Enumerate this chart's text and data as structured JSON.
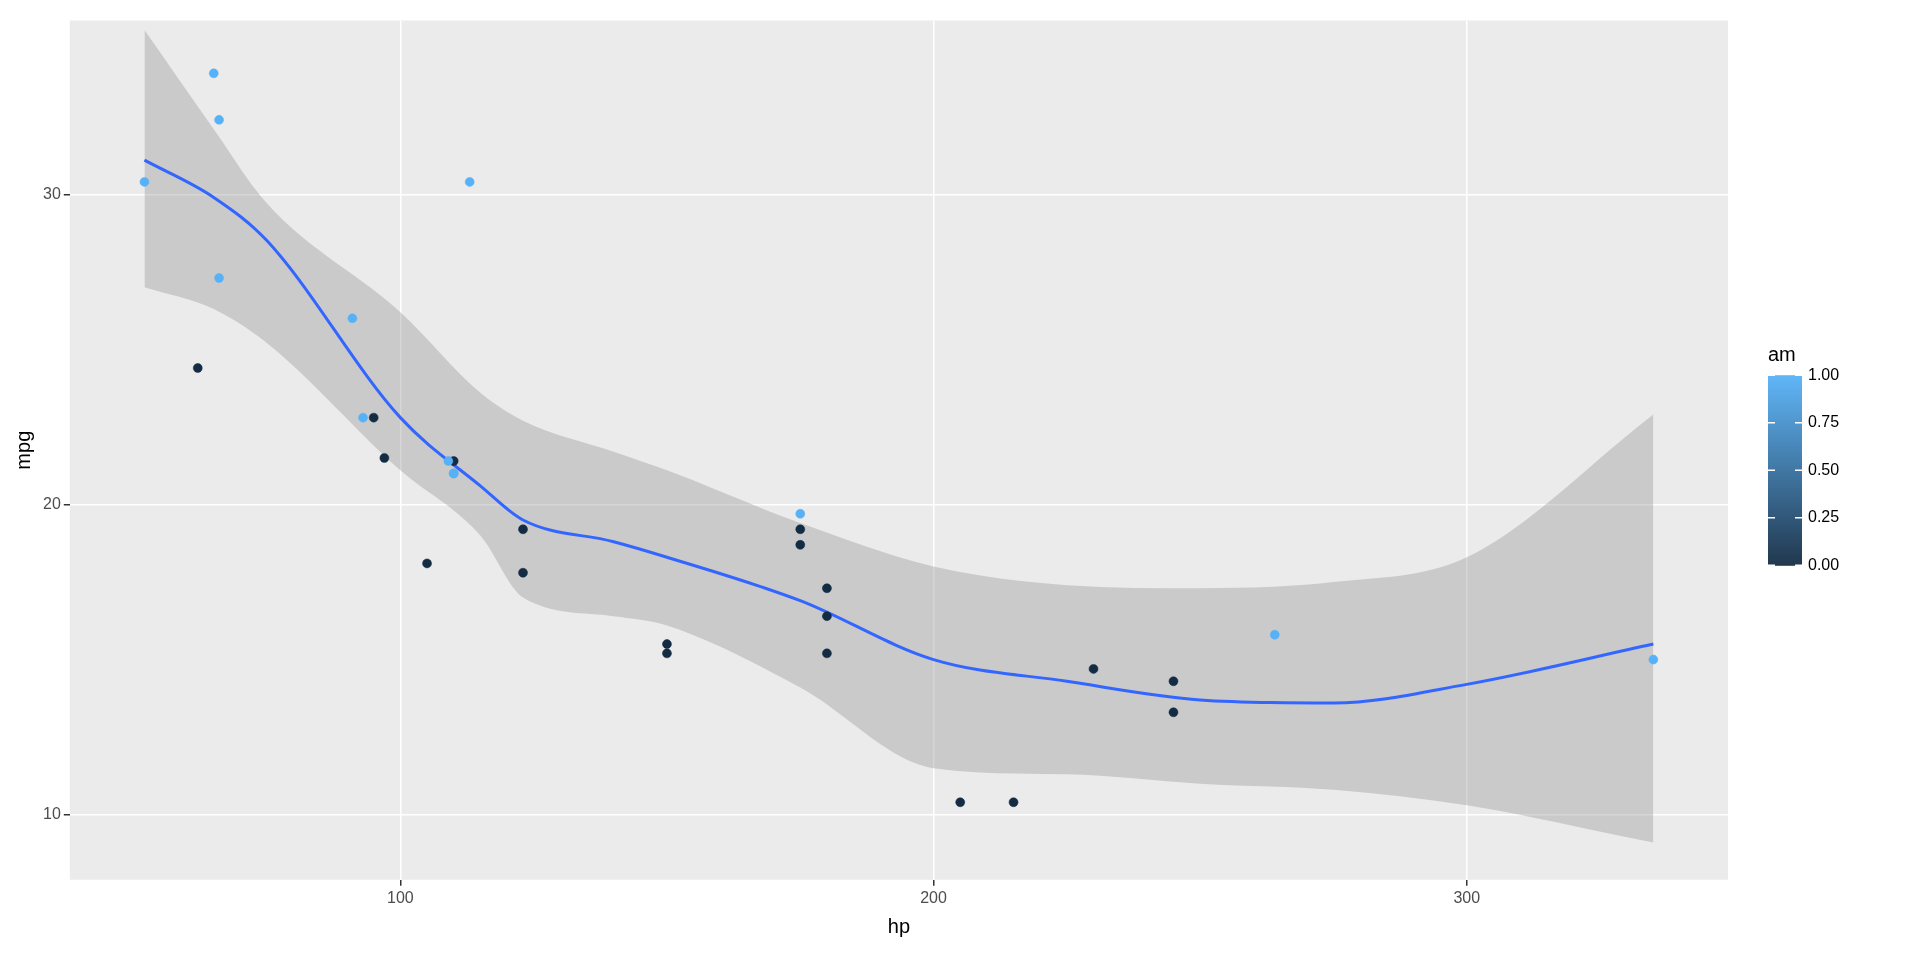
{
  "chart_data": {
    "type": "scatter",
    "xlabel": "hp",
    "ylabel": "mpg",
    "clabel": "am",
    "xlim": [
      38,
      349
    ],
    "xticks": [
      100,
      200,
      300
    ],
    "ylim": [
      7.9,
      35.6
    ],
    "yticks": [
      10,
      20,
      30
    ],
    "clim": [
      0,
      1
    ],
    "cticks": [
      {
        "value": 0,
        "label": "0.00"
      },
      {
        "value": 0.25,
        "label": "0.25"
      },
      {
        "value": 0.5,
        "label": "0.50"
      },
      {
        "value": 0.75,
        "label": "0.75"
      },
      {
        "value": 1,
        "label": "1.00"
      }
    ],
    "grid": true,
    "series": [
      {
        "marker": "circle",
        "colors": [
          "#56b1f7",
          "#56b1f7",
          "#56b1f7",
          "#132b43",
          "#132b43",
          "#132b43",
          "#132b43",
          "#132b43",
          "#132b43",
          "#132b43",
          "#132b43",
          "#132b43",
          "#132b43",
          "#132b43",
          "#132b43",
          "#132b43",
          "#132b43",
          "#56b1f7",
          "#56b1f7",
          "#56b1f7",
          "#132b43",
          "#132b43",
          "#132b43",
          "#132b43",
          "#132b43",
          "#56b1f7",
          "#56b1f7",
          "#56b1f7",
          "#56b1f7",
          "#56b1f7",
          "#56b1f7",
          "#56b1f7"
        ],
        "x": [
          110,
          110,
          93,
          110,
          175,
          105,
          245,
          62,
          95,
          123,
          123,
          180,
          180,
          180,
          205,
          215,
          230,
          66,
          52,
          65,
          97,
          150,
          150,
          245,
          175,
          66,
          91,
          113,
          264,
          175,
          335,
          109
        ],
        "values": [
          21.0,
          21.0,
          22.8,
          21.4,
          18.7,
          18.1,
          14.3,
          24.4,
          22.8,
          19.2,
          17.8,
          16.4,
          17.3,
          15.2,
          10.4,
          10.4,
          14.7,
          32.4,
          30.4,
          33.9,
          21.5,
          15.5,
          15.2,
          13.3,
          19.2,
          27.3,
          26.0,
          30.4,
          15.8,
          19.7,
          15.0,
          21.4
        ],
        "cvalues": [
          1,
          1,
          1,
          0,
          0,
          0,
          0,
          0,
          0,
          0,
          0,
          0,
          0,
          0,
          0,
          0,
          0,
          1,
          1,
          1,
          0,
          0,
          0,
          0,
          0,
          1,
          1,
          1,
          1,
          1,
          1,
          1
        ]
      },
      {
        "type": "line",
        "marker": "none",
        "color": "#3366ff",
        "x": [
          52,
          65,
          75,
          100,
          115,
          123,
          140,
          150,
          175,
          200,
          225,
          250,
          275,
          300,
          335
        ],
        "values": [
          31.1,
          29.9,
          28.5,
          22.8,
          20.6,
          19.5,
          18.8,
          18.3,
          16.9,
          15.0,
          14.3,
          13.7,
          13.6,
          14.2,
          15.5
        ],
        "lower": [
          27.0,
          26.3,
          25.2,
          21.1,
          19.0,
          17.0,
          16.4,
          16.1,
          14.1,
          11.5,
          11.3,
          11.0,
          10.8,
          10.3,
          9.1
        ],
        "upper": [
          35.3,
          32.1,
          29.7,
          26.2,
          23.6,
          22.7,
          21.7,
          21.1,
          19.4,
          18.0,
          17.4,
          17.3,
          17.5,
          18.3,
          22.9
        ]
      }
    ]
  }
}
